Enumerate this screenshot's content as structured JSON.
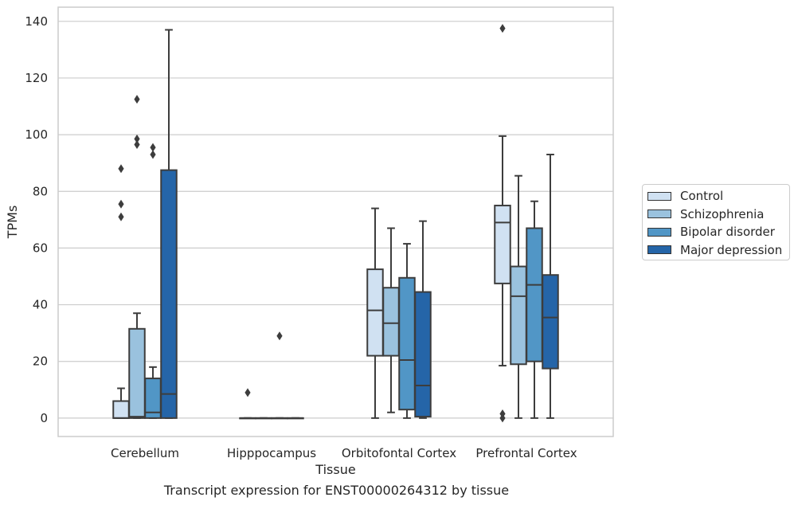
{
  "chart_data": {
    "type": "boxplot",
    "caption": "Transcript expression for ENST00000264312 by tissue",
    "xlabel": "Tissue",
    "ylabel": "TPMs",
    "ylim": [
      -6.5,
      145
    ],
    "yticks": [
      0,
      20,
      40,
      60,
      80,
      100,
      120,
      140
    ],
    "grid": true,
    "legend_position": "right",
    "categories": [
      "Cerebellum",
      "Hipppocampus",
      "Orbitofontal Cortex",
      "Prefrontal Cortex"
    ],
    "series": [
      {
        "name": "Control",
        "color": "#d0e1f2",
        "boxes": [
          {
            "category": "Cerebellum",
            "min": 0,
            "q1": 0,
            "median": 0,
            "q3": 6,
            "max": 10.5,
            "outliers": [
              71,
              75.5,
              88
            ]
          },
          {
            "category": "Hipppocampus",
            "min": 0,
            "q1": 0,
            "median": 0,
            "q3": 0,
            "max": 0,
            "outliers": [
              9
            ]
          },
          {
            "category": "Orbitofontal Cortex",
            "min": 0,
            "q1": 22,
            "median": 38,
            "q3": 52.5,
            "max": 74,
            "outliers": []
          },
          {
            "category": "Prefrontal Cortex",
            "min": 18.5,
            "q1": 47.5,
            "median": 69,
            "q3": 75,
            "max": 99.5,
            "outliers": [
              0,
              1.5,
              137.5
            ]
          }
        ]
      },
      {
        "name": "Schizophrenia",
        "color": "#9ac2de",
        "boxes": [
          {
            "category": "Cerebellum",
            "min": 0,
            "q1": 0,
            "median": 0.5,
            "q3": 31.5,
            "max": 37,
            "outliers": [
              96.5,
              98.5,
              112.5
            ]
          },
          {
            "category": "Hipppocampus",
            "min": 0,
            "q1": 0,
            "median": 0,
            "q3": 0,
            "max": 0,
            "outliers": []
          },
          {
            "category": "Orbitofontal Cortex",
            "min": 2,
            "q1": 22,
            "median": 33.5,
            "q3": 46,
            "max": 67,
            "outliers": []
          },
          {
            "category": "Prefrontal Cortex",
            "min": 0,
            "q1": 19,
            "median": 43,
            "q3": 53.5,
            "max": 85.5,
            "outliers": []
          }
        ]
      },
      {
        "name": "Bipolar disorder",
        "color": "#5196c6",
        "boxes": [
          {
            "category": "Cerebellum",
            "min": 0,
            "q1": 0,
            "median": 2,
            "q3": 14,
            "max": 18,
            "outliers": [
              93,
              95.5
            ]
          },
          {
            "category": "Hipppocampus",
            "min": 0,
            "q1": 0,
            "median": 0,
            "q3": 0,
            "max": 0,
            "outliers": [
              29
            ]
          },
          {
            "category": "Orbitofontal Cortex",
            "min": 0,
            "q1": 3,
            "median": 20.5,
            "q3": 49.5,
            "max": 61.5,
            "outliers": []
          },
          {
            "category": "Prefrontal Cortex",
            "min": 0,
            "q1": 20,
            "median": 47,
            "q3": 67,
            "max": 76.5,
            "outliers": []
          }
        ]
      },
      {
        "name": "Major depression",
        "color": "#2565a8",
        "boxes": [
          {
            "category": "Cerebellum",
            "min": 0,
            "q1": 0,
            "median": 8.5,
            "q3": 87.5,
            "max": 137,
            "outliers": []
          },
          {
            "category": "Hipppocampus",
            "min": 0,
            "q1": 0,
            "median": 0,
            "q3": 0,
            "max": 0,
            "outliers": []
          },
          {
            "category": "Orbitofontal Cortex",
            "min": 0,
            "q1": 0.5,
            "median": 11.5,
            "q3": 44.5,
            "max": 69.5,
            "outliers": []
          },
          {
            "category": "Prefrontal Cortex",
            "min": 0,
            "q1": 17.5,
            "median": 35.5,
            "q3": 50.5,
            "max": 93,
            "outliers": []
          }
        ]
      }
    ]
  }
}
